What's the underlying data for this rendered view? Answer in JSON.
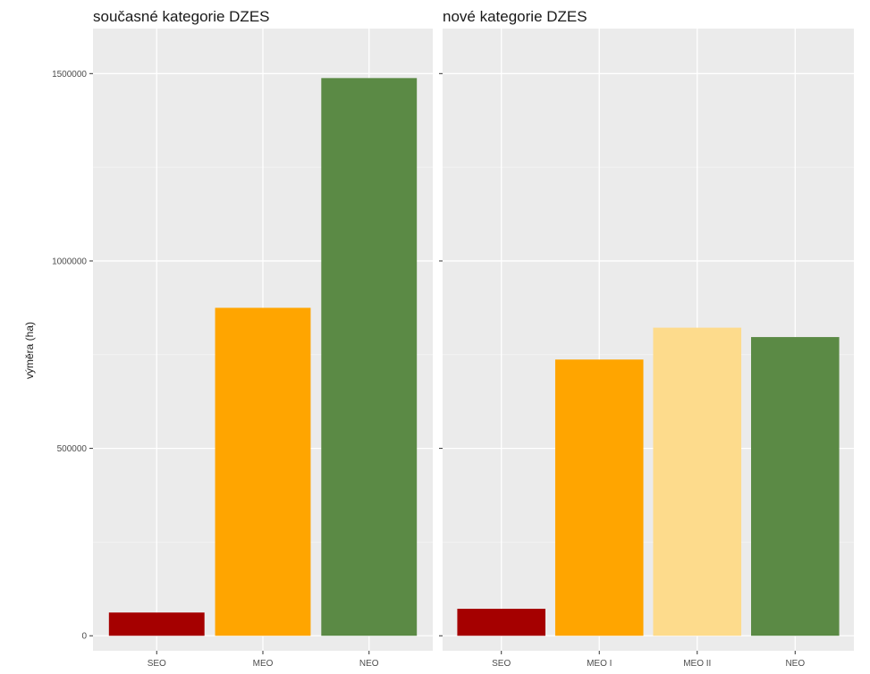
{
  "chart_data": {
    "type": "bar",
    "ylabel": "výměra (ha)",
    "ylim": [
      -40000,
      1620000
    ],
    "y_ticks": [
      0,
      500000,
      1000000,
      1500000
    ],
    "y_tick_labels": [
      "0",
      "500000",
      "1000000",
      "1500000"
    ],
    "grid": true,
    "panels": [
      {
        "title": "současné kategorie DZES",
        "categories": [
          "SEO",
          "MEO",
          "NEO"
        ],
        "values": [
          62000,
          875000,
          1488000
        ],
        "colors": [
          "#a50000",
          "#ffa500",
          "#5b8a45"
        ]
      },
      {
        "title": "nové kategorie DZES",
        "categories": [
          "SEO",
          "MEO I",
          "MEO II",
          "NEO"
        ],
        "values": [
          72000,
          737000,
          822000,
          797000
        ],
        "colors": [
          "#a50000",
          "#ffa500",
          "#fddb8c",
          "#5b8a45"
        ]
      }
    ]
  }
}
